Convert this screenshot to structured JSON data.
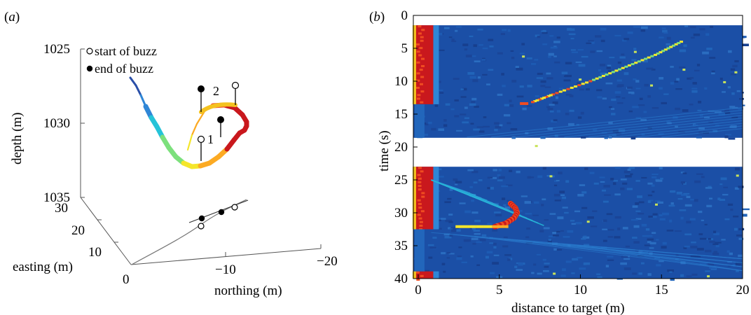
{
  "chart_data": [
    {
      "panel": "(a)",
      "type": "scatter",
      "projection": "3d",
      "xlabel": "northing (m)",
      "ylabel": "easting (m)",
      "zlabel": "depth (m)",
      "x_ticks": [
        "0",
        "−10",
        "−20"
      ],
      "y_ticks": [
        "0",
        "10",
        "20",
        "30"
      ],
      "z_ticks": [
        "1025",
        "1030",
        "1035"
      ],
      "xlim": [
        0,
        -20
      ],
      "ylim": [
        0,
        30
      ],
      "zlim": [
        1025,
        1035
      ],
      "legend": [
        {
          "label": "start of buzz",
          "marker": "open-circle"
        },
        {
          "label": "end of buzz",
          "marker": "filled-circle"
        }
      ],
      "legend_position": "top-left",
      "buzz_labels": [
        "1",
        "2"
      ],
      "colormap": "jet",
      "trajectory_colors": [
        "#2a4fa8",
        "#2f86d6",
        "#25c3d8",
        "#7ce07c",
        "#f4e62b",
        "#fcaa23",
        "#ef4c21",
        "#c9181d"
      ],
      "ground_track_color": "#777777",
      "stem_color": "#000000"
    },
    {
      "panel": "(b)",
      "type": "heatmap",
      "xlabel": "distance to target (m)",
      "ylabel": "time (s)",
      "x_ticks": [
        "0",
        "5",
        "10",
        "15",
        "20"
      ],
      "y_ticks": [
        "0",
        "5",
        "10",
        "15",
        "20",
        "25",
        "30",
        "35",
        "40"
      ],
      "xlim": [
        -0.3,
        20
      ],
      "ylim": [
        40,
        0
      ],
      "colormap": "jet",
      "background_color": "#1b4fa6",
      "data_gap_seconds": [
        18.6,
        23
      ],
      "strong_return_distance": [
        0,
        0.8
      ],
      "buzz_1": {
        "time_range": [
          1.5,
          13.5
        ],
        "echo_track": {
          "time": [
            4,
            6,
            8,
            10,
            12,
            13.3
          ],
          "distance": [
            16.2,
            14.6,
            12.6,
            10.6,
            8.3,
            6.9
          ]
        }
      },
      "buzz_2": {
        "time_range": [
          22.9,
          32.5
        ],
        "echo_track": {
          "time": [
            28.6,
            29.3,
            30,
            30.8,
            31.6,
            32.2
          ],
          "distance": [
            5.7,
            6.0,
            6.1,
            5.9,
            5.4,
            4.6
          ]
        }
      }
    }
  ]
}
